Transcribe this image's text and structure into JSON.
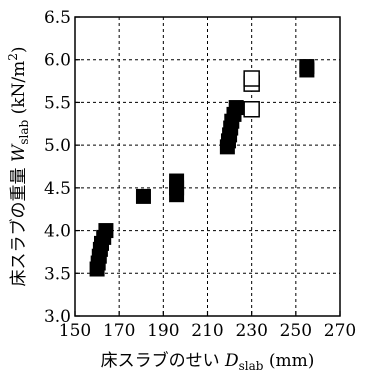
{
  "chart_data": {
    "type": "scatter",
    "xlabel": {
      "text": "床スラブのせい ",
      "var": "D",
      "sub": "slab",
      "unit": " (mm)"
    },
    "ylabel": {
      "text": "床スラブの重量 ",
      "var": "W",
      "sub": "slab",
      "unit_pre": " (kN/m",
      "unit_sup": "2",
      "unit_post": ")"
    },
    "xlim": [
      150,
      270
    ],
    "ylim": [
      3.0,
      6.5
    ],
    "xticks": [
      150,
      170,
      190,
      210,
      230,
      250,
      270
    ],
    "yticks": [
      3.0,
      3.5,
      4.0,
      4.5,
      5.0,
      5.5,
      6.0,
      6.5
    ],
    "ytick_labels": [
      "3.0",
      "3.5",
      "4.0",
      "4.5",
      "5.0",
      "5.5",
      "6.0",
      "6.5"
    ],
    "grid": true,
    "series": [
      {
        "marker": "filled-square",
        "color": "#000000",
        "points": [
          [
            160,
            3.55
          ],
          [
            160.5,
            3.62
          ],
          [
            161,
            3.7
          ],
          [
            161.5,
            3.78
          ],
          [
            162,
            3.85
          ],
          [
            163,
            3.92
          ],
          [
            164,
            4.0
          ],
          [
            181,
            4.4
          ],
          [
            196,
            4.42
          ],
          [
            196,
            4.5
          ],
          [
            196,
            4.58
          ],
          [
            219,
            4.98
          ],
          [
            219.5,
            5.05
          ],
          [
            220,
            5.12
          ],
          [
            220.5,
            5.2
          ],
          [
            221,
            5.28
          ],
          [
            222,
            5.36
          ],
          [
            223,
            5.44
          ],
          [
            255,
            5.88
          ],
          [
            255,
            5.92
          ]
        ]
      },
      {
        "marker": "open-square",
        "color": "#000000",
        "points": [
          [
            230,
            5.42
          ],
          [
            230,
            5.72
          ],
          [
            230,
            5.78
          ]
        ]
      }
    ]
  }
}
